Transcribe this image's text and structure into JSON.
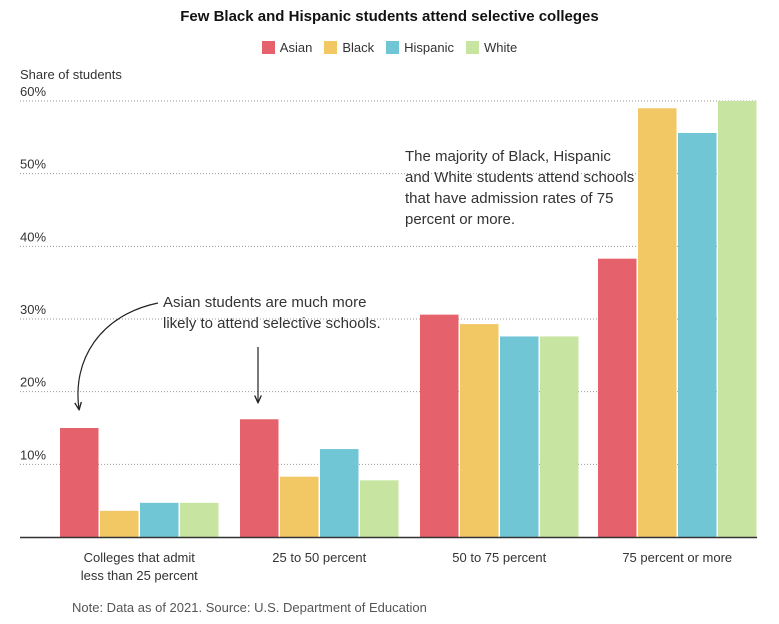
{
  "chart_data": {
    "type": "bar",
    "title": "Few Black and Hispanic students attend selective colleges",
    "ylabel": "Share of students",
    "xlabel": "",
    "ylim": [
      0,
      60
    ],
    "yticks": [
      "10%",
      "20%",
      "30%",
      "40%",
      "50%",
      "60%"
    ],
    "categories": [
      "Colleges that admit less than 25 percent",
      "25 to 50 percent",
      "50 to 75 percent",
      "75 percent or more"
    ],
    "category_lines": [
      [
        "Colleges that admit",
        "less than 25 percent"
      ],
      [
        "25 to 50 percent"
      ],
      [
        "50 to 75 percent"
      ],
      [
        "75 percent or more"
      ]
    ],
    "series": [
      {
        "name": "Asian",
        "color": "#e5616b",
        "values": [
          15,
          16.2,
          30.6,
          38.3
        ]
      },
      {
        "name": "Black",
        "color": "#f2c864",
        "values": [
          3.6,
          8.3,
          29.3,
          59
        ]
      },
      {
        "name": "Hispanic",
        "color": "#71c6d6",
        "values": [
          4.7,
          12.1,
          27.6,
          55.6
        ]
      },
      {
        "name": "White",
        "color": "#c7e5a1",
        "values": [
          4.7,
          7.8,
          27.6,
          60
        ]
      }
    ],
    "annotations": [
      "Asian students are much more likely to attend selective schools.",
      "The majority of Black, Hispanic and White students attend schools that have admission rates of 75 percent or more."
    ],
    "note": "Note: Data as of 2021. Source: U.S. Department of Education"
  }
}
